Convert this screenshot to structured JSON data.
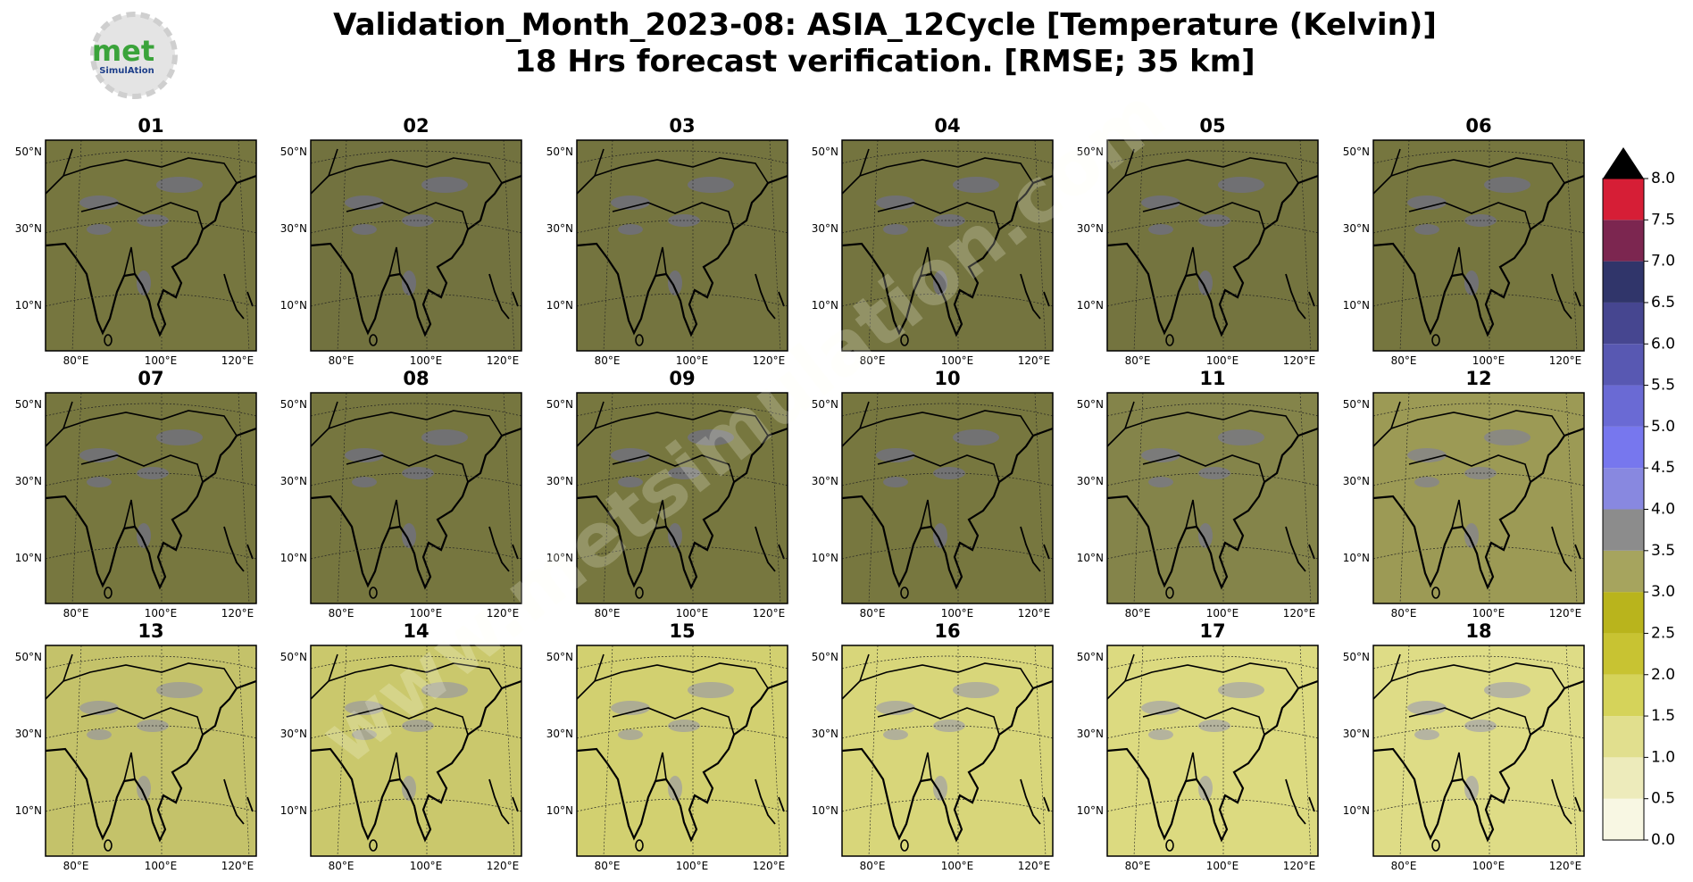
{
  "header": {
    "title_lines": [
      "Validation_Month_2023-08: ASIA_12Cycle [Temperature (Kelvin)]",
      "18 Hrs forecast verification.  [RMSE; 35 km]"
    ]
  },
  "logo": {
    "text": "met",
    "subtext": "SimulAtion"
  },
  "watermark": "www.metsimulation.com",
  "lat_labels": [
    "50°N",
    "30°N",
    "10°N"
  ],
  "lon_labels": [
    "80°E",
    "100°E",
    "120°E"
  ],
  "panels": [
    {
      "title": "01",
      "color": "#76763f"
    },
    {
      "title": "02",
      "color": "#72723f"
    },
    {
      "title": "03",
      "color": "#74743f"
    },
    {
      "title": "04",
      "color": "#74743f"
    },
    {
      "title": "05",
      "color": "#74743f"
    },
    {
      "title": "06",
      "color": "#76763f"
    },
    {
      "title": "07",
      "color": "#77773f"
    },
    {
      "title": "08",
      "color": "#76763f"
    },
    {
      "title": "09",
      "color": "#77773f"
    },
    {
      "title": "10",
      "color": "#77773f"
    },
    {
      "title": "11",
      "color": "#84844a"
    },
    {
      "title": "12",
      "color": "#9c9a55"
    },
    {
      "title": "13",
      "color": "#c4c26a"
    },
    {
      "title": "14",
      "color": "#cac86c"
    },
    {
      "title": "15",
      "color": "#d2d070"
    },
    {
      "title": "16",
      "color": "#d8d67a"
    },
    {
      "title": "17",
      "color": "#dcda80"
    },
    {
      "title": "18",
      "color": "#dedc86"
    }
  ],
  "colorbar": {
    "ticks": [
      {
        "value": 0,
        "label": "0.0"
      },
      {
        "value": 0.5,
        "label": "0.5"
      },
      {
        "value": 1,
        "label": "1.0"
      },
      {
        "value": 1.5,
        "label": "1.5"
      },
      {
        "value": 2,
        "label": "2.0"
      },
      {
        "value": 2.5,
        "label": "2.5"
      },
      {
        "value": 3,
        "label": "3.0"
      },
      {
        "value": 3.5,
        "label": "3.5"
      },
      {
        "value": 4,
        "label": "4.0"
      },
      {
        "value": 4.5,
        "label": "4.5"
      },
      {
        "value": 5,
        "label": "5.0"
      },
      {
        "value": 5.5,
        "label": "5.5"
      },
      {
        "value": 6,
        "label": "6.0"
      },
      {
        "value": 6.5,
        "label": "6.5"
      },
      {
        "value": 7,
        "label": "7.0"
      },
      {
        "value": 7.5,
        "label": "7.5"
      },
      {
        "value": 8,
        "label": "8.0"
      }
    ],
    "colors": [
      "#f8f7e3",
      "#edebbb",
      "#e1df8e",
      "#d5d35a",
      "#c8c332",
      "#b9b41c",
      "#a6a45e",
      "#8c8c8c",
      "#8888e0",
      "#7777ee",
      "#6a6ad4",
      "#5858b2",
      "#464690",
      "#30356a",
      "#7c2650",
      "#d61e36",
      "#880f1a"
    ],
    "extend_color": "#000000"
  }
}
